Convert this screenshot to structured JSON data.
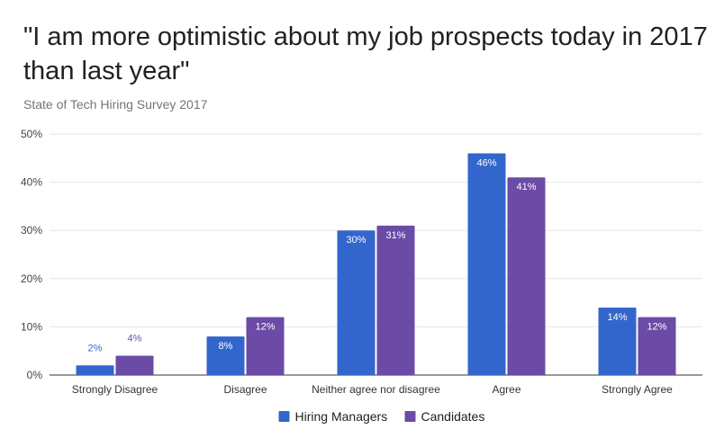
{
  "title": "\"I am more optimistic about my job prospects today in 2017 than last year\"",
  "subtitle": "State of Tech Hiring Survey 2017",
  "chart_data": {
    "type": "bar",
    "categories": [
      "Strongly Disagree",
      "Disagree",
      "Neither agree nor disagree",
      "Agree",
      "Strongly Agree"
    ],
    "series": [
      {
        "name": "Hiring Managers",
        "color": "#3366cc",
        "values": [
          2,
          8,
          30,
          46,
          14
        ],
        "labels": [
          "2%",
          "8%",
          "30%",
          "46%",
          "14%"
        ]
      },
      {
        "name": "Candidates",
        "color": "#6b4ba6",
        "values": [
          4,
          12,
          31,
          41,
          12
        ],
        "labels": [
          "4%",
          "12%",
          "31%",
          "41%",
          "12%"
        ]
      }
    ],
    "yticks": [
      0,
      10,
      20,
      30,
      40,
      50
    ],
    "ytick_labels": [
      "0%",
      "10%",
      "20%",
      "30%",
      "40%",
      "50%"
    ],
    "ylim": [
      0,
      50
    ],
    "xlabel": "",
    "ylabel": "",
    "grid": true,
    "legend": "bottom"
  }
}
